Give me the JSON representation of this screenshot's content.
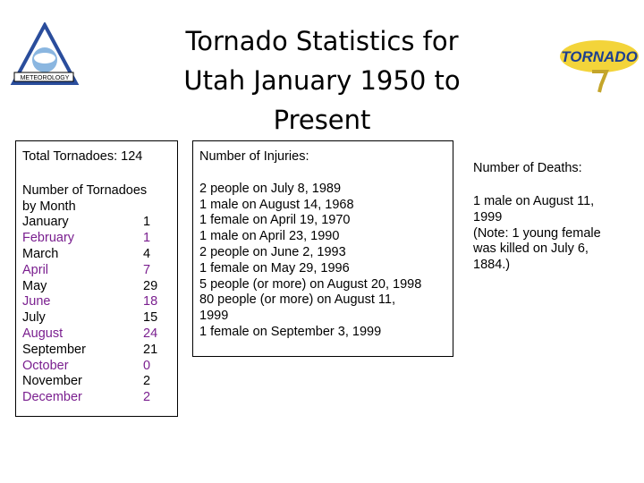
{
  "header": {
    "title_lines": [
      "Tornado Statistics for",
      "Utah January 1950 to",
      "Present"
    ]
  },
  "logos": {
    "left": "METEOROLOGY",
    "right": "TORNADO"
  },
  "tornadoes": {
    "total": "Total Tornadoes: 124",
    "heading_lines": [
      "Number of Tornadoes",
      "by Month"
    ],
    "months": [
      [
        "January",
        "1"
      ],
      [
        "February",
        "1"
      ],
      [
        "March",
        "4"
      ],
      [
        "April",
        "7"
      ],
      [
        "May",
        "29"
      ],
      [
        "June",
        "18"
      ],
      [
        "July",
        "15"
      ],
      [
        "August",
        "24"
      ],
      [
        "September",
        "21"
      ],
      [
        "October",
        "0"
      ],
      [
        "November",
        "2"
      ],
      [
        "December",
        "2"
      ]
    ]
  },
  "injuries": {
    "heading": "Number of Injuries:",
    "lines": [
      "2 people on July 8, 1989",
      "1 male on August 14, 1968",
      "1 female on April 19, 1970",
      "1 male on April 23, 1990",
      "2 people on June 2, 1993",
      "1 female on May 29, 1996",
      "5 people (or more) on August 20, 1998",
      "80 people (or more) on August 11,",
      "1999",
      "1 female on September 3, 1999"
    ]
  },
  "deaths": {
    "heading": "Number of Deaths:",
    "lines": [
      "1 male on August 11,",
      "1999",
      "(Note: 1 young female",
      "was killed on July 6,",
      "1884.)"
    ]
  }
}
